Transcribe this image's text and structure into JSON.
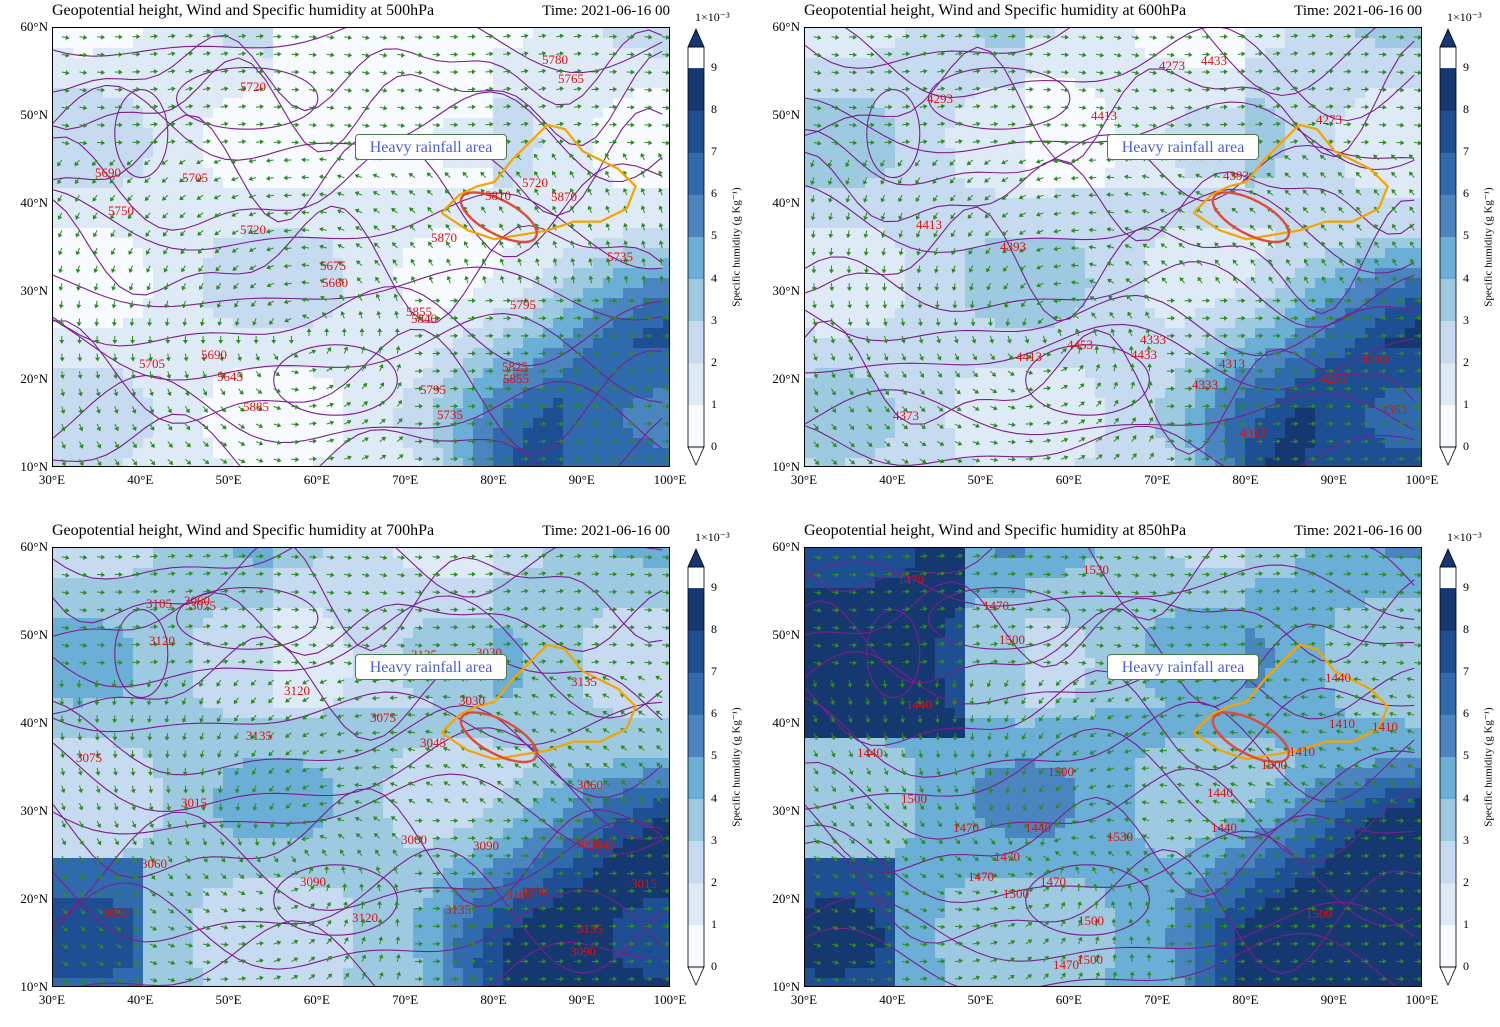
{
  "panels": [
    {
      "title": "Geopotential height, Wind and Specific humidity at 500hPa",
      "time": "Time: 2021-06-16 00",
      "annotation": "Heavy rainfall area",
      "contour_labels": [
        "5735",
        "5720",
        "5690",
        "5705",
        "5720",
        "5795",
        "5735",
        "5720",
        "5660",
        "5645",
        "5705",
        "5690",
        "5675",
        "5855",
        "5810",
        "5780",
        "5750",
        "5765",
        "5795",
        "5870",
        "5825",
        "5840",
        "5885",
        "5855",
        "5870"
      ],
      "humidity_bias": 0
    },
    {
      "title": "Geopotential height, Wind and Specific humidity at 600hPa",
      "time": "Time: 2021-06-16 00",
      "annotation": "Heavy rainfall area",
      "contour_labels": [
        "4253",
        "4293",
        "4333",
        "4273",
        "4313",
        "4393",
        "4313",
        "4353",
        "4293",
        "4333",
        "4413",
        "4393",
        "4433",
        "4433",
        "4453",
        "4373",
        "4413",
        "4273",
        "4413"
      ],
      "humidity_bias": 1
    },
    {
      "title": "Geopotential height, Wind and Specific humidity at 700hPa",
      "time": "Time: 2021-06-16 00",
      "annotation": "Heavy rainfall area",
      "contour_labels": [
        "3060",
        "3045",
        "3060",
        "3015",
        "3135",
        "3150",
        "3075",
        "3030",
        "3045",
        "3090",
        "3075",
        "3060",
        "3060",
        "3120",
        "3105",
        "3090",
        "3090",
        "3135",
        "3135",
        "3090",
        "3015",
        "3030",
        "3135",
        "3120",
        "3060",
        "3075",
        "3105",
        "3135",
        "3120"
      ],
      "humidity_bias": 2
    },
    {
      "title": "Geopotential height, Wind and Specific humidity at 850hPa",
      "time": "Time: 2021-06-16 00",
      "annotation": "Heavy rainfall area",
      "contour_labels": [
        "1440",
        "1470",
        "1470",
        "1500",
        "1530",
        "1440",
        "1500",
        "1470",
        "1440",
        "1500",
        "1470",
        "1500",
        "1470",
        "1500",
        "1410",
        "1440",
        "1470",
        "1410",
        "1530",
        "1440",
        "1470",
        "1500",
        "1500",
        "1440",
        "1410",
        "1500",
        "1440"
      ],
      "humidity_bias": 3
    }
  ],
  "axes": {
    "lat_ticks": [
      "60°N",
      "50°N",
      "40°N",
      "30°N",
      "20°N",
      "10°N"
    ],
    "lon_ticks": [
      "30°E",
      "40°E",
      "50°E",
      "60°E",
      "70°E",
      "80°E",
      "90°E",
      "100°E"
    ],
    "lon_range": [
      30,
      100
    ],
    "lat_range": [
      10,
      60
    ]
  },
  "colorbar": {
    "exponent": "1×10⁻³",
    "ticks": [
      "0",
      "1",
      "2",
      "3",
      "4",
      "5",
      "6",
      "7",
      "8",
      "9"
    ],
    "label": "Specific humidity (g Kg⁻¹)",
    "range": [
      0,
      9.5
    ],
    "colors": [
      "#f7fbff",
      "#deebf7",
      "#c6dbef",
      "#9ecae1",
      "#6baed6",
      "#4a85c0",
      "#2f6aad",
      "#1d4f92",
      "#14386f"
    ]
  },
  "colors": {
    "contour": "#7b1f8a",
    "contour_label": "#e01010",
    "wind": "#2e8b1e",
    "boundary": "#f2a500",
    "ellipse": "#e04a3a",
    "annotation_text": "#4d5fd0"
  }
}
